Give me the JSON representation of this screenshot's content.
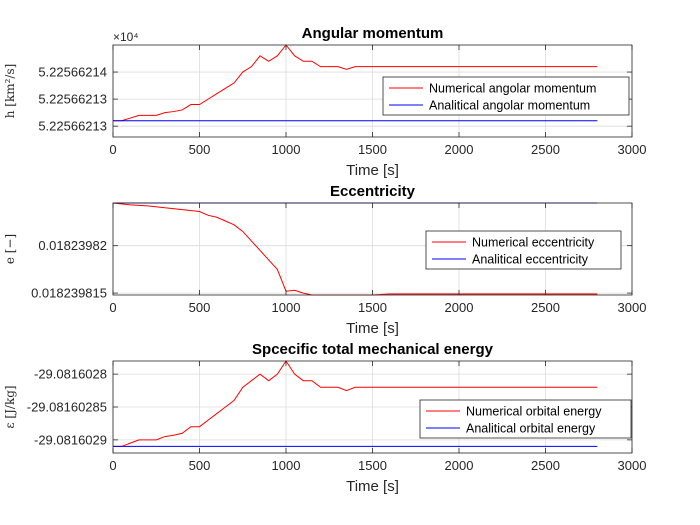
{
  "chart_data": [
    {
      "type": "line",
      "title": "Angular momentum",
      "xlabel": "Time [s]",
      "ylabel": "h [km²/s]",
      "exponent_label": "×10⁴",
      "xlim": [
        0,
        3000
      ],
      "ylim": [
        52256.62128,
        52256.62145
      ],
      "xticks": [
        0,
        500,
        1000,
        1500,
        2000,
        2500,
        3000
      ],
      "yticks": [
        52256.6213,
        52256.62135,
        52256.6214
      ],
      "yticklabels": [
        "5.22566213",
        "5.22566213",
        "5.22566214"
      ],
      "grid": true,
      "legend_position": "right",
      "series": [
        {
          "name": "Numerical angolar momentum",
          "color": "#ff0000",
          "x": [
            0,
            50,
            100,
            150,
            200,
            250,
            300,
            350,
            400,
            450,
            500,
            550,
            600,
            650,
            700,
            750,
            800,
            850,
            900,
            950,
            1000,
            1050,
            1100,
            1150,
            1200,
            1250,
            1300,
            1350,
            1400,
            1500,
            1600,
            1700,
            1800,
            1900,
            2000,
            2100,
            2200,
            2300,
            2400,
            2500,
            2600,
            2700,
            2800
          ],
          "y": [
            52256.62131,
            52256.62131,
            52256.621315,
            52256.62132,
            52256.62132,
            52256.62132,
            52256.621325,
            52256.621327,
            52256.62133,
            52256.62134,
            52256.62134,
            52256.62135,
            52256.62136,
            52256.62137,
            52256.62138,
            52256.6214,
            52256.62141,
            52256.62143,
            52256.62142,
            52256.62143,
            52256.62145,
            52256.62143,
            52256.62142,
            52256.62142,
            52256.62141,
            52256.62141,
            52256.62141,
            52256.621405,
            52256.62141,
            52256.62141,
            52256.62141,
            52256.62141,
            52256.62141,
            52256.62141,
            52256.62141,
            52256.62141,
            52256.62141,
            52256.62141,
            52256.62141,
            52256.62141,
            52256.62141,
            52256.62141,
            52256.62141
          ]
        },
        {
          "name": "Analitical angolar momentum",
          "color": "#0000ff",
          "x": [
            0,
            2800
          ],
          "y": [
            52256.62131,
            52256.62131
          ]
        }
      ]
    },
    {
      "type": "line",
      "title": "Eccentricity",
      "xlabel": "Time [s]",
      "ylabel": "e [−]",
      "xlim": [
        0,
        3000
      ],
      "ylim": [
        0.0182398148,
        0.0182398245
      ],
      "xticks": [
        0,
        500,
        1000,
        1500,
        2000,
        2500,
        3000
      ],
      "yticks": [
        0.018239815,
        0.01823982
      ],
      "yticklabels": [
        "0.018239815",
        "0.01823982"
      ],
      "grid": true,
      "legend_position": "right",
      "series": [
        {
          "name": "Numerical eccentricity",
          "color": "#ff0000",
          "x": [
            0,
            100,
            200,
            300,
            400,
            500,
            550,
            600,
            650,
            700,
            750,
            800,
            850,
            900,
            950,
            1000,
            1050,
            1100,
            1150,
            1200,
            1300,
            1400,
            1500,
            1600,
            1700,
            1800,
            1900,
            2000,
            2100,
            2200,
            2300,
            2400,
            2500,
            2600,
            2700,
            2800
          ],
          "y": [
            0.0182398245,
            0.0182398243,
            0.0182398242,
            0.018239824,
            0.0182398238,
            0.0182398236,
            0.0182398232,
            0.018239823,
            0.0182398226,
            0.0182398222,
            0.0182398215,
            0.0182398205,
            0.0182398195,
            0.0182398185,
            0.0182398175,
            0.0182398152,
            0.0182398153,
            0.018239815,
            0.0182398148,
            0.0182398148,
            0.0182398148,
            0.0182398148,
            0.0182398148,
            0.0182398149,
            0.0182398149,
            0.0182398149,
            0.0182398149,
            0.0182398149,
            0.0182398149,
            0.0182398149,
            0.0182398149,
            0.0182398149,
            0.0182398149,
            0.0182398149,
            0.0182398149,
            0.0182398149
          ]
        },
        {
          "name": "Analitical eccentricity",
          "color": "#0000ff",
          "x": [
            0,
            2800
          ],
          "y": [
            0.0182398245,
            0.0182398245
          ]
        }
      ]
    },
    {
      "type": "line",
      "title": "Spcecific total mechanical energy",
      "xlabel": "Time [s]",
      "ylabel": "ε [J/kg]",
      "xlim": [
        0,
        3000
      ],
      "ylim": [
        -29.08160292,
        -29.08160278
      ],
      "xticks": [
        0,
        500,
        1000,
        1500,
        2000,
        2500,
        3000
      ],
      "yticks": [
        -29.0816029,
        -29.08160285,
        -29.0816028
      ],
      "yticklabels": [
        "-29.0816029",
        "-29.08160285",
        "-29.0816028"
      ],
      "grid": true,
      "legend_position": "right",
      "series": [
        {
          "name": "Numerical orbital energy",
          "color": "#ff0000",
          "x": [
            0,
            50,
            100,
            150,
            200,
            250,
            300,
            350,
            400,
            450,
            500,
            550,
            600,
            650,
            700,
            750,
            800,
            850,
            900,
            950,
            1000,
            1050,
            1100,
            1150,
            1200,
            1250,
            1300,
            1350,
            1400,
            1500,
            1600,
            1700,
            1800,
            1900,
            2000,
            2100,
            2200,
            2300,
            2400,
            2500,
            2600,
            2700,
            2800
          ],
          "y": [
            -29.08160291,
            -29.08160291,
            -29.081602905,
            -29.0816029,
            -29.0816029,
            -29.0816029,
            -29.081602895,
            -29.081602893,
            -29.08160289,
            -29.08160288,
            -29.08160288,
            -29.08160287,
            -29.08160286,
            -29.08160285,
            -29.08160284,
            -29.08160282,
            -29.08160281,
            -29.0816028,
            -29.08160281,
            -29.0816028,
            -29.08160278,
            -29.0816028,
            -29.08160281,
            -29.08160281,
            -29.08160282,
            -29.08160282,
            -29.08160282,
            -29.081602825,
            -29.08160282,
            -29.08160282,
            -29.08160282,
            -29.08160282,
            -29.08160282,
            -29.08160282,
            -29.08160282,
            -29.08160282,
            -29.08160282,
            -29.08160282,
            -29.08160282,
            -29.08160282,
            -29.08160282,
            -29.08160282,
            -29.08160282
          ]
        },
        {
          "name": "Analitical orbital energy",
          "color": "#0000ff",
          "x": [
            0,
            2800
          ],
          "y": [
            -29.08160291,
            -29.08160291
          ]
        }
      ]
    }
  ]
}
